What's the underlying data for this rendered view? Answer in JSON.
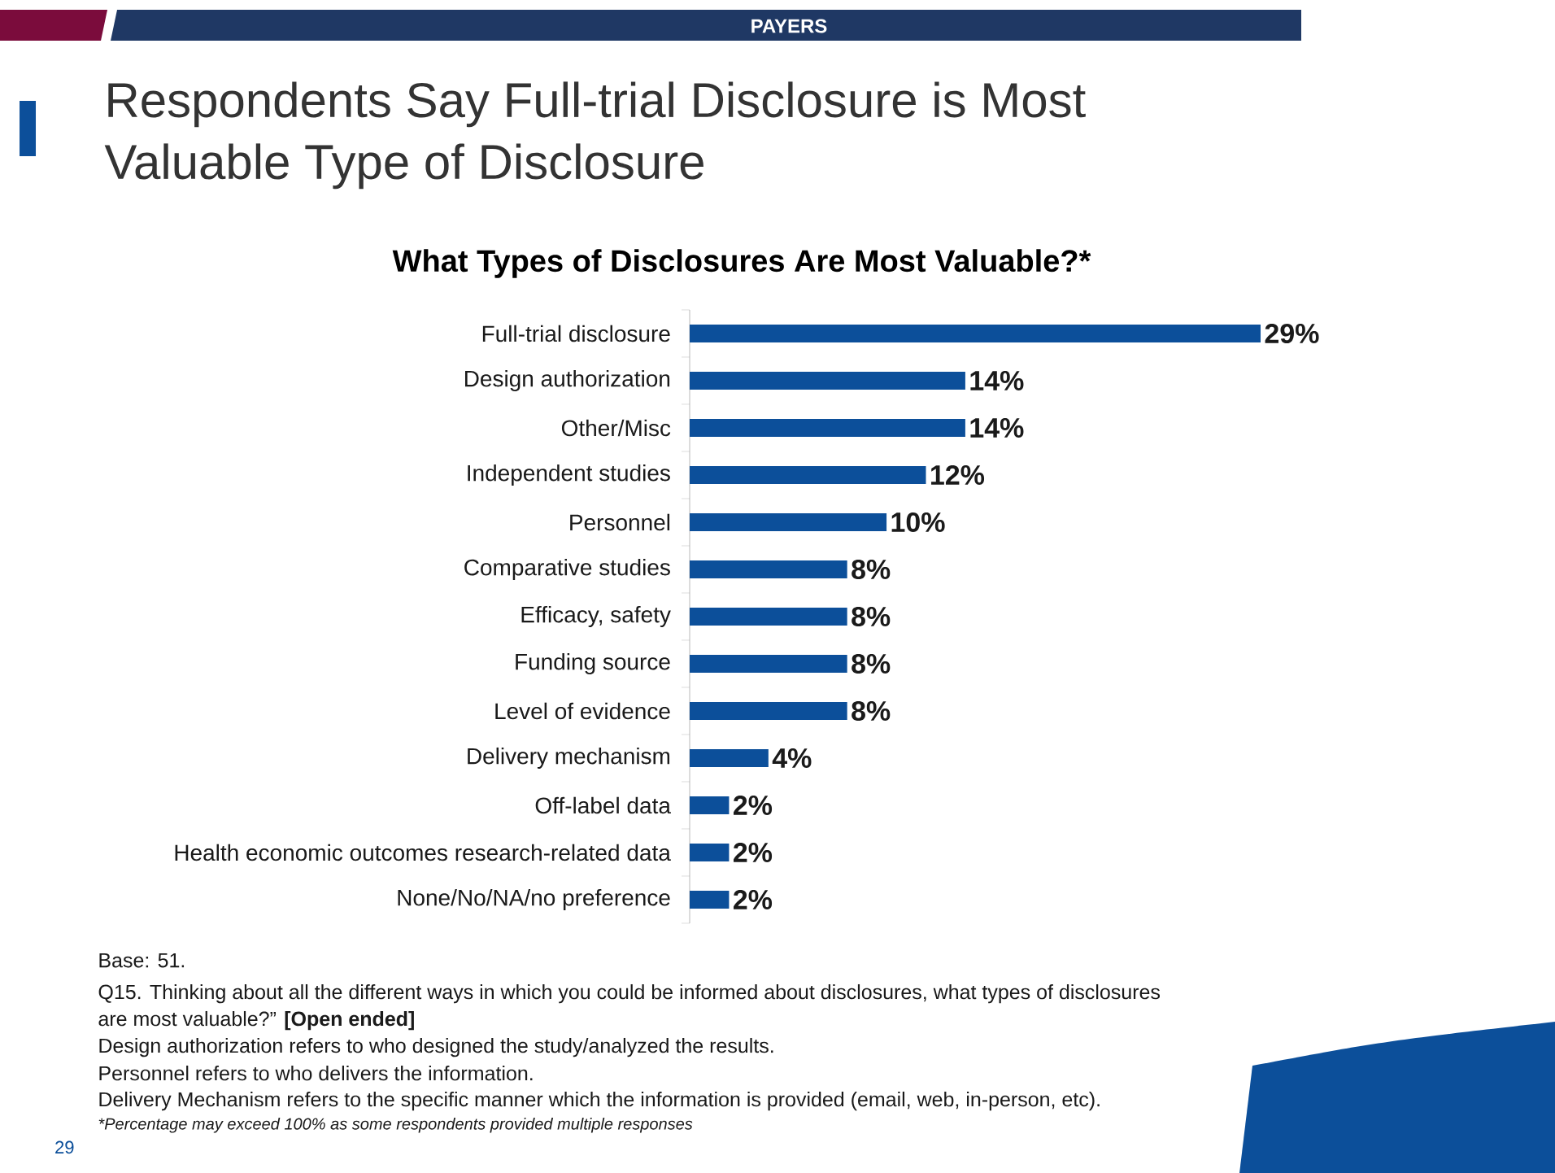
{
  "chart_data": {
    "type": "bar",
    "orientation": "horizontal",
    "title": "Respondents Say Full-trial Disclosure is Most Valuable Type of Disclosure",
    "subtitle": "What Types of Disclosures Are Most Valuable?*",
    "categories": [
      "Full-trial disclosure",
      "Design authorization",
      "Other/Misc",
      "Independent studies",
      "Personnel",
      "Comparative studies",
      "Efficacy, safety",
      "Funding source",
      "Level of evidence",
      "Delivery mechanism",
      "Off-label data",
      "Health economic outcomes research-related data",
      "None/No/NA/no preference"
    ],
    "values": [
      29,
      14,
      14,
      12,
      10,
      8,
      8,
      8,
      8,
      4,
      2,
      2,
      2
    ],
    "value_labels": [
      "29%",
      "14%",
      "14%",
      "12%",
      "10%",
      "8%",
      "8%",
      "8%",
      "8%",
      "4%",
      "2%",
      "2%",
      "2%"
    ],
    "color": "#0c4f9a",
    "annotations": [
      "PAYERS",
      "Base: 51.",
      "Q15. Thinking about all the different ways in which you could be informed about disclosures, what types of disclosures are most valuable?” **[Open ended]**",
      "Design authorization refers to who designed the study/analyzed the results.",
      "Personnel refers to who delivers the information.",
      "Delivery Mechanism refers to the specific manner which the information is provided (email, web, in-person, etc).",
      "*Percentage may exceed 100% as some respondents provided multiple responses",
      "29"
    ]
  }
}
